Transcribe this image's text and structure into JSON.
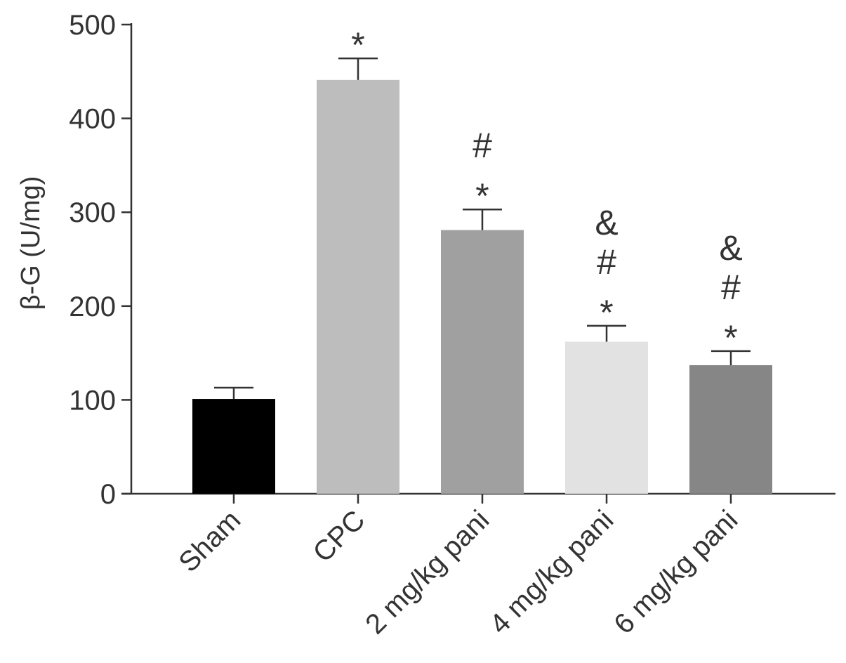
{
  "chart_data": {
    "type": "bar",
    "ylabel": "β-G (U/mg)",
    "xlabel": "",
    "ylim": [
      0,
      500
    ],
    "yticks": [
      0,
      100,
      200,
      300,
      400,
      500
    ],
    "categories": [
      "Sham",
      "CPC",
      "2 mg/kg pani",
      "4 mg/kg pani",
      "6 mg/kg pani"
    ],
    "values": [
      101,
      441,
      281,
      162,
      137
    ],
    "errors": [
      12,
      23,
      22,
      17,
      15
    ],
    "colors": [
      "#000000",
      "#bdbdbd",
      "#a0a0a0",
      "#e2e2e2",
      "#868686"
    ],
    "significance": [
      [],
      [
        "*"
      ],
      [
        "#",
        "*"
      ],
      [
        "&",
        "#",
        "*"
      ],
      [
        "&",
        "#",
        "*"
      ]
    ],
    "grid": false
  }
}
